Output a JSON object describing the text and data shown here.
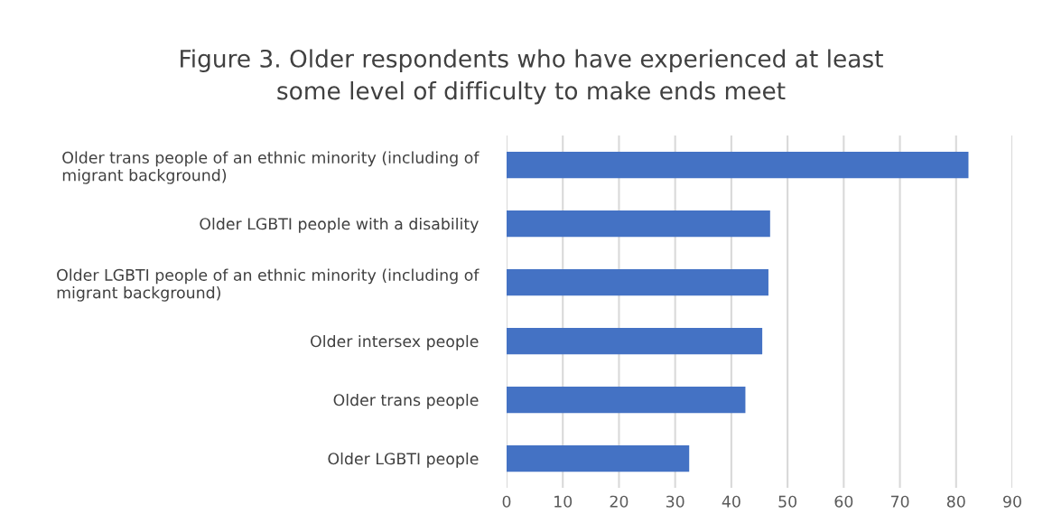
{
  "chart_data": {
    "type": "bar",
    "orientation": "horizontal",
    "title": "Figure 3. Older respondents who have experienced at least\nsome level of difficulty to make ends meet",
    "categories": [
      "Older trans people of an ethnic minority (including of\nmigrant background)",
      "Older LGBTI people with a disability",
      "Older LGBTI people of an ethnic minority (including of\nmigrant background)",
      "Older intersex people",
      "Older trans people",
      "Older LGBTI people"
    ],
    "values": [
      82.2,
      46.9,
      46.6,
      45.5,
      42.5,
      32.5
    ],
    "color": "#4472c4",
    "xlim": [
      0,
      90
    ],
    "xticks": [
      0,
      10,
      20,
      30,
      40,
      50,
      60,
      70,
      80,
      90
    ],
    "grid": "x",
    "legend": false
  }
}
